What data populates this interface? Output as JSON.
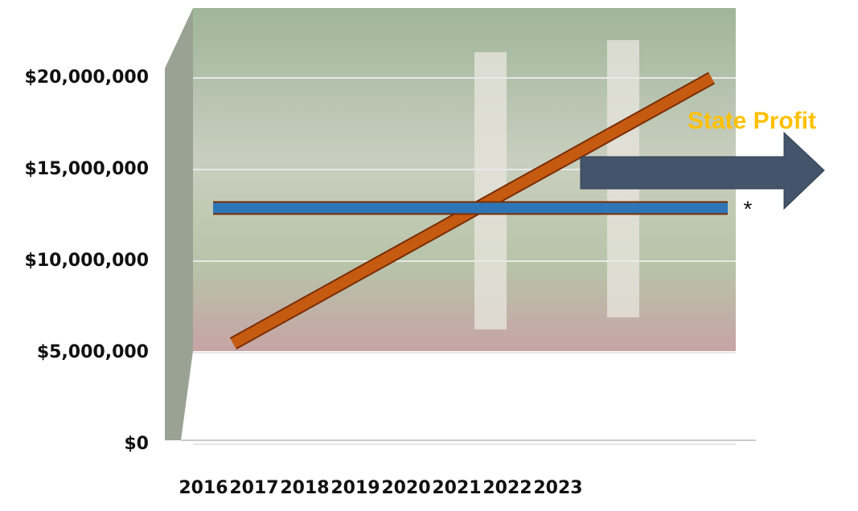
{
  "chart_data": {
    "type": "line",
    "categories": [
      "2016",
      "2017",
      "2018",
      "2019",
      "2020",
      "2021",
      "2022",
      "2023"
    ],
    "series": [
      {
        "color": "#c55a11",
        "values": [
          5500000,
          7570000,
          9640000,
          11710000,
          13790000,
          15860000,
          17930000,
          20000000
        ]
      },
      {
        "color": "#2e75b6",
        "values": [
          12900000,
          12900000,
          12900000,
          12900000,
          12900000,
          12900000,
          12900000,
          12900000
        ]
      }
    ],
    "ylim": [
      0,
      20000000
    ],
    "yticks": [
      {
        "value": 0,
        "label": "$0"
      },
      {
        "value": 5000000,
        "label": "$5,000,000"
      },
      {
        "value": 10000000,
        "label": "$10,000,000"
      },
      {
        "value": 15000000,
        "label": "$15,000,000"
      },
      {
        "value": 20000000,
        "label": "$20,000,000"
      }
    ],
    "grid": true,
    "annotations": [
      "State Profit",
      "*"
    ]
  }
}
